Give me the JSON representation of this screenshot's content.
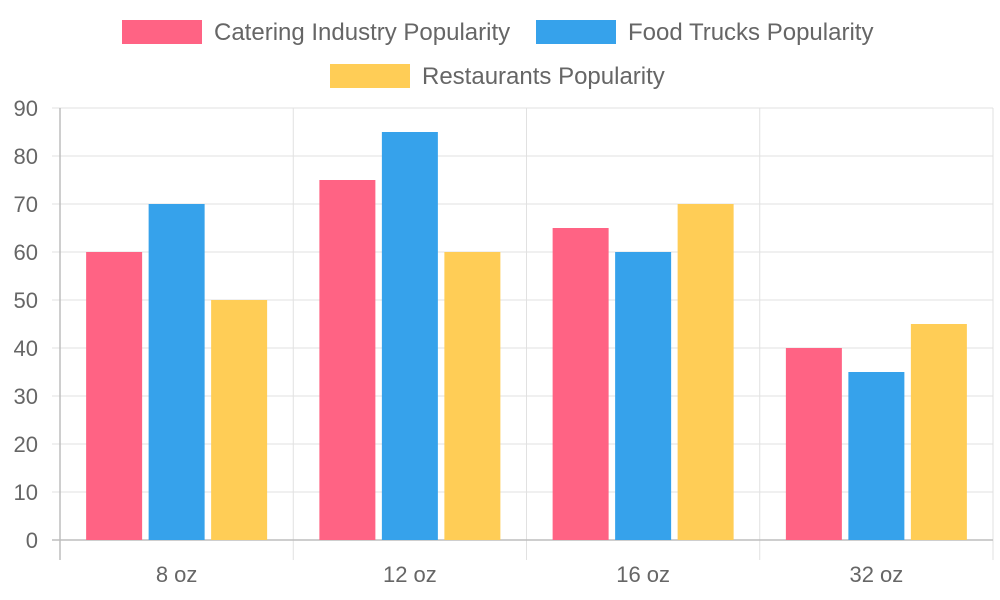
{
  "chart_data": {
    "type": "bar",
    "categories": [
      "8 oz",
      "12 oz",
      "16 oz",
      "32 oz"
    ],
    "series": [
      {
        "name": "Catering Industry Popularity",
        "values": [
          60,
          75,
          65,
          40
        ],
        "color": "#ff6384"
      },
      {
        "name": "Food Trucks Popularity",
        "values": [
          70,
          85,
          60,
          35
        ],
        "color": "#36a2eb"
      },
      {
        "name": "Restaurants Popularity",
        "values": [
          50,
          60,
          70,
          45
        ],
        "color": "#ffcd56"
      }
    ],
    "y_ticks": [
      0,
      10,
      20,
      30,
      40,
      50,
      60,
      70,
      80,
      90
    ],
    "ylim": [
      0,
      90
    ],
    "grid": true,
    "legend_position": "top-center"
  }
}
